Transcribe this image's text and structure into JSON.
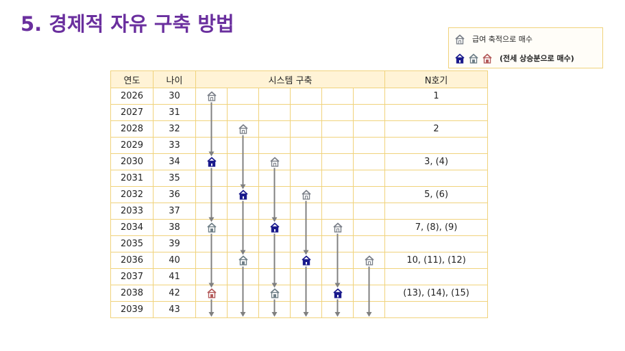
{
  "title": "5. 경제적 자유 구축 방법",
  "legend": {
    "item1": "급여 축적으로 매수",
    "item2": "(전세 상승분으로 매수)"
  },
  "colors": {
    "house_outline": "#7a7f88",
    "house_blue": "#1a1a8c",
    "house_grey": "#6f7f87",
    "house_pink": "#b35a5a",
    "arrow": "#808080",
    "border": "#f0d27a"
  },
  "table": {
    "headers": {
      "year": "연도",
      "age": "나이",
      "system": "시스템 구축",
      "n": "N호기"
    },
    "rows": [
      {
        "year": "2026",
        "age": "30",
        "n": "1"
      },
      {
        "year": "2027",
        "age": "31",
        "n": ""
      },
      {
        "year": "2028",
        "age": "32",
        "n": "2"
      },
      {
        "year": "2029",
        "age": "33",
        "n": ""
      },
      {
        "year": "2030",
        "age": "34",
        "n": "3, (4)"
      },
      {
        "year": "2031",
        "age": "35",
        "n": ""
      },
      {
        "year": "2032",
        "age": "36",
        "n": "5, (6)"
      },
      {
        "year": "2033",
        "age": "37",
        "n": ""
      },
      {
        "year": "2034",
        "age": "38",
        "n": "7, (8), (9)"
      },
      {
        "year": "2035",
        "age": "39",
        "n": ""
      },
      {
        "year": "2036",
        "age": "40",
        "n": "10, (11), (12)"
      },
      {
        "year": "2037",
        "age": "41",
        "n": ""
      },
      {
        "year": "2038",
        "age": "42",
        "n": "(13), (14), (15)"
      },
      {
        "year": "2039",
        "age": "43",
        "n": ""
      }
    ],
    "houses": [
      {
        "row": 0,
        "col": 0,
        "type": "outline"
      },
      {
        "row": 2,
        "col": 1,
        "type": "outline"
      },
      {
        "row": 4,
        "col": 0,
        "type": "blue"
      },
      {
        "row": 4,
        "col": 2,
        "type": "outline"
      },
      {
        "row": 6,
        "col": 1,
        "type": "blue"
      },
      {
        "row": 6,
        "col": 3,
        "type": "outline"
      },
      {
        "row": 8,
        "col": 0,
        "type": "grey"
      },
      {
        "row": 8,
        "col": 2,
        "type": "blue"
      },
      {
        "row": 8,
        "col": 4,
        "type": "outline"
      },
      {
        "row": 10,
        "col": 1,
        "type": "grey"
      },
      {
        "row": 10,
        "col": 3,
        "type": "blue"
      },
      {
        "row": 10,
        "col": 5,
        "type": "outline"
      },
      {
        "row": 12,
        "col": 0,
        "type": "pink"
      },
      {
        "row": 12,
        "col": 2,
        "type": "grey"
      },
      {
        "row": 12,
        "col": 4,
        "type": "blue"
      }
    ]
  }
}
